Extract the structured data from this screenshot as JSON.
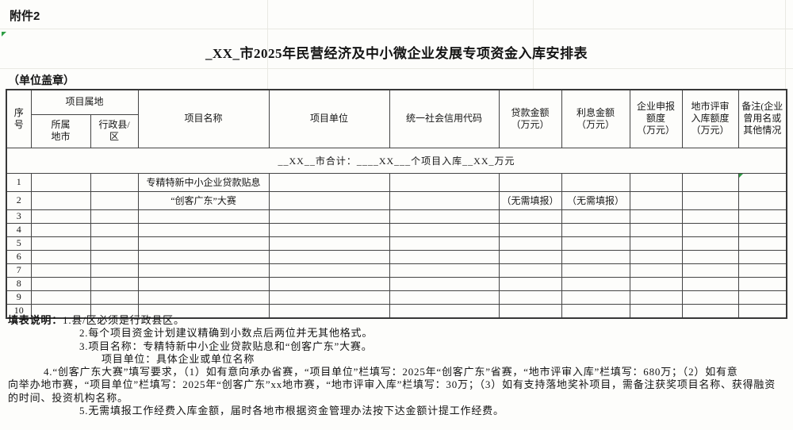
{
  "page": {
    "attachment_label": "附件2",
    "title": "_XX_市2025年民营经济及中小微企业发展专项资金入库安排表",
    "seal_label": "（单位盖章）"
  },
  "colors": {
    "flag_green": "#2e9e44",
    "border": "#444444",
    "gridline": "#e9e9e3"
  },
  "icons": {
    "cell_flag": "green-corner-triangle"
  },
  "table": {
    "headers": {
      "no": "序\n号",
      "location_group": "项目属地",
      "city": "所属\n地市",
      "county": "行政县/\n区",
      "project_name": "项目名称",
      "project_unit": "项目单位",
      "credit_code": "统一社会信用代码",
      "loan_amount": "贷款金额\n（万元）",
      "interest_amount": "利息金额\n（万元）",
      "enterprise_quota": "企业申报\n额度\n（万元）",
      "city_review_quota": "地市评审\n入库额度\n（万元）",
      "remarks": "备注(企业曾用名或其他情况"
    },
    "summary_row": "__XX__市合计：____XX___个项目入库__XX_万元",
    "rows": [
      [
        "1",
        "",
        "",
        "专精特新中小企业贷款贴息",
        "",
        "",
        "",
        "",
        "",
        "",
        ""
      ],
      [
        "2",
        "",
        "",
        "“创客广东”大赛",
        "",
        "",
        "（无需填报）",
        "（无需填报）",
        "",
        "",
        ""
      ],
      [
        "3",
        "",
        "",
        "",
        "",
        "",
        "",
        "",
        "",
        "",
        ""
      ],
      [
        "4",
        "",
        "",
        "",
        "",
        "",
        "",
        "",
        "",
        "",
        ""
      ],
      [
        "5",
        "",
        "",
        "",
        "",
        "",
        "",
        "",
        "",
        "",
        ""
      ],
      [
        "6",
        "",
        "",
        "",
        "",
        "",
        "",
        "",
        "",
        "",
        ""
      ],
      [
        "7",
        "",
        "",
        "",
        "",
        "",
        "",
        "",
        "",
        "",
        ""
      ],
      [
        "8",
        "",
        "",
        "",
        "",
        "",
        "",
        "",
        "",
        "",
        ""
      ],
      [
        "9",
        "",
        "",
        "",
        "",
        "",
        "",
        "",
        "",
        "",
        ""
      ],
      [
        "10",
        "",
        "",
        "",
        "",
        "",
        "",
        "",
        "",
        "",
        ""
      ]
    ]
  },
  "notes": {
    "label": "填表说明：",
    "lines": [
      "1.县/区必须是行政县区。",
      "2.每个项目资金计划建议精确到小数点后两位并无其他格式。",
      "3.项目名称：专精特新中小企业贷款贴息和“创客广东”大赛。",
      "项目单位：具体企业或单位名称",
      "4.“创客广东大赛”填写要求，（1）如有意向承办省赛，“项目单位”栏填写：2025年“创客广东”省赛，“地市评审入库”栏填写：680万；（2）如有意",
      "向举办地市赛，“项目单位”栏填写：2025年“创客广东”xx地市赛，“地市评审入库”栏填写：30万；（3）如有支持落地奖补项目，需备注获奖项目名称、获得融资",
      "的时间、投资机构名称。",
      "5.无需填报工作经费入库金额，届时各地市根据资金管理办法按下达金额计提工作经费。"
    ]
  }
}
